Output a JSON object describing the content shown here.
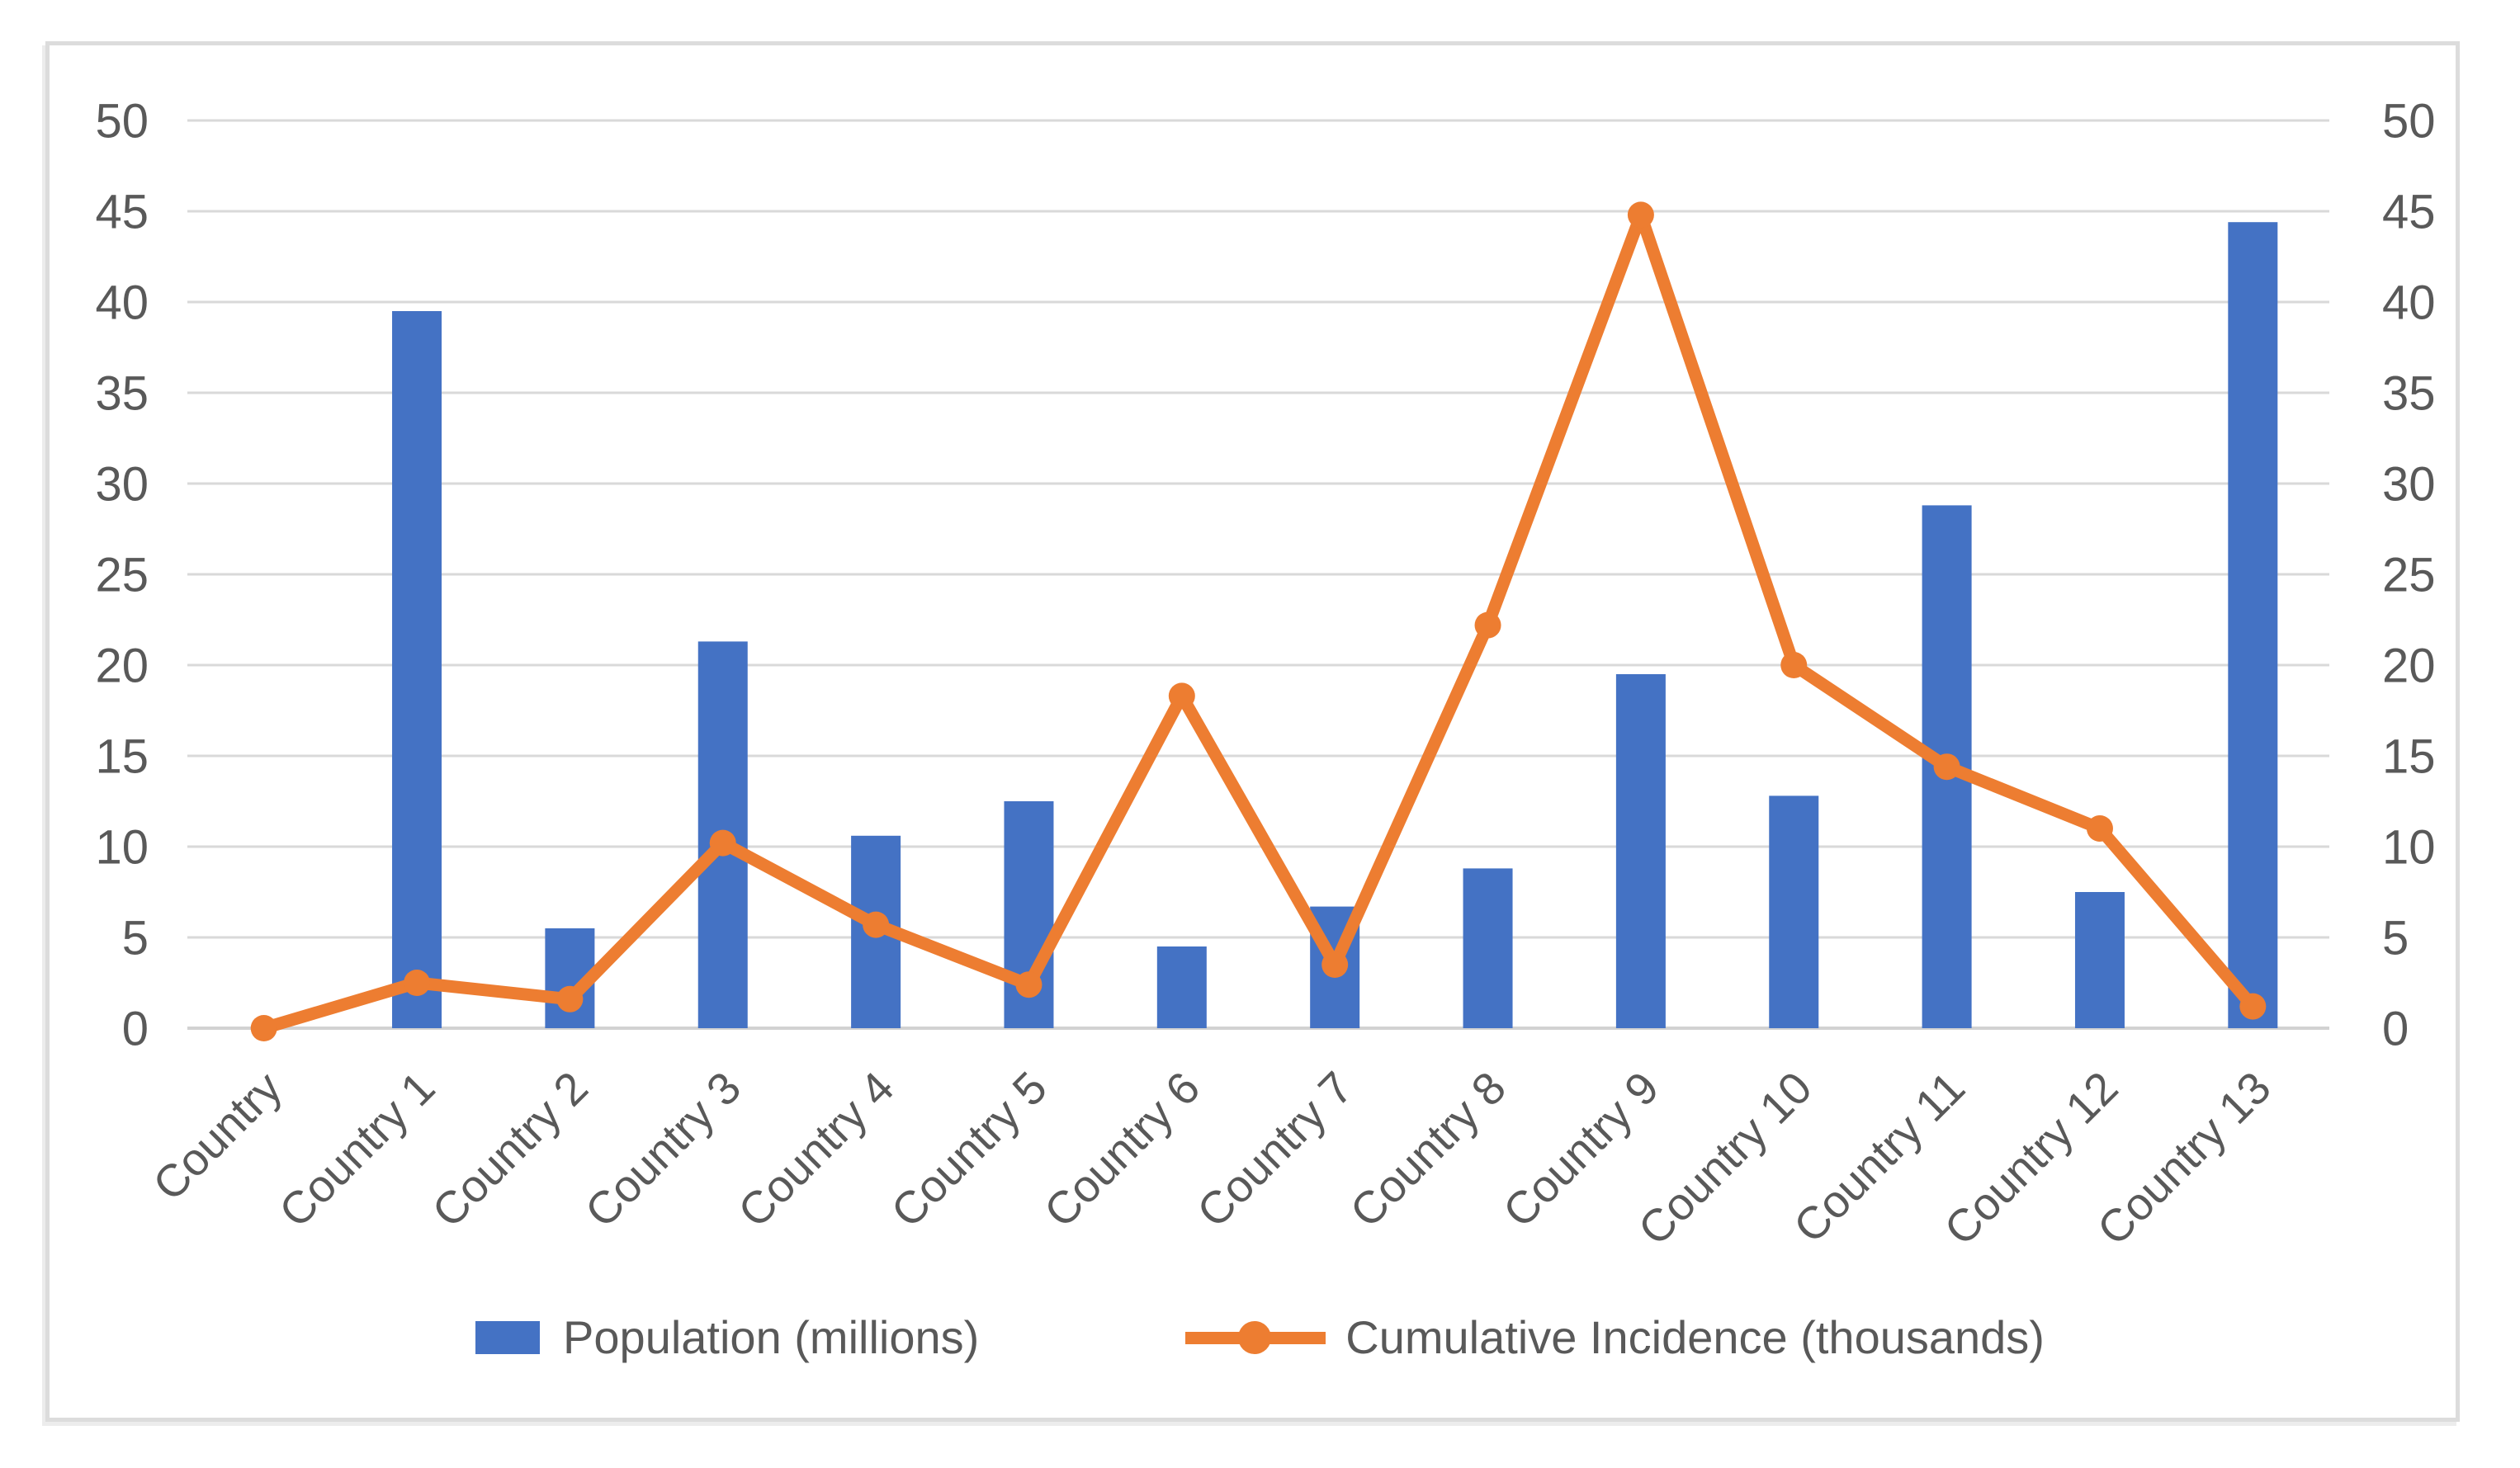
{
  "chart_data": {
    "type": "bar",
    "subtype": "combo-bar-line-dual-axis",
    "title": "",
    "categories": [
      "Country",
      "Country 1",
      "Country 2",
      "Country 3",
      "Country 4",
      "Country 5",
      "Country 6",
      "Country 7",
      "Country 8",
      "Country 9",
      "Country 10",
      "Country 11",
      "Country 12",
      "Country 13"
    ],
    "series": [
      {
        "name": "Population (millions)",
        "type": "bar",
        "color": "#4472C4",
        "axis": "left",
        "values": [
          0,
          39.5,
          5.5,
          21.3,
          10.6,
          12.5,
          4.5,
          6.7,
          8.8,
          19.5,
          12.8,
          28.8,
          7.5,
          44.4
        ]
      },
      {
        "name": "Cumulative Incidence (thousands)",
        "type": "line",
        "color": "#ED7D31",
        "axis": "right",
        "marker": "circle",
        "values": [
          0,
          2.5,
          1.6,
          10.2,
          5.7,
          2.4,
          18.3,
          3.5,
          22.2,
          44.8,
          20.0,
          14.4,
          11.0,
          1.2
        ]
      }
    ],
    "y_axis": {
      "min": 0,
      "max": 50,
      "step": 5,
      "ticks": [
        0,
        5,
        10,
        15,
        20,
        25,
        30,
        35,
        40,
        45,
        50
      ],
      "sides": "both"
    },
    "x_axis": {
      "label_rotation_deg": 45
    },
    "grid": true,
    "legend_position": "bottom"
  },
  "legend": {
    "population_label": "Population (millions)",
    "incidence_label": "Cumulative Incidence (thousands)"
  },
  "colors": {
    "bar": "#4472C4",
    "line": "#ED7D31",
    "grid": "#D9D9D9",
    "axis_line": "#D2D2D2",
    "tick_text": "#595959",
    "frame": "#DCDCDC"
  }
}
